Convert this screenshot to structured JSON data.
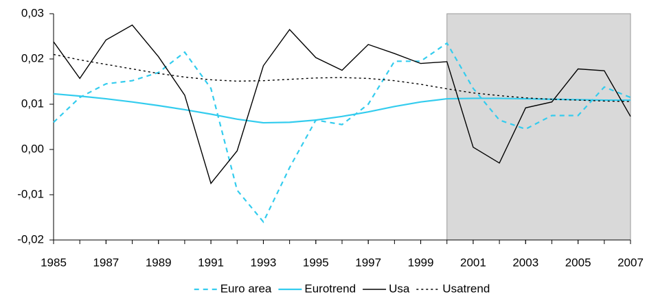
{
  "chart_data": {
    "type": "line",
    "x": [
      1985,
      1986,
      1987,
      1988,
      1989,
      1990,
      1991,
      1992,
      1993,
      1994,
      1995,
      1996,
      1997,
      1998,
      1999,
      2000,
      2001,
      2002,
      2003,
      2004,
      2005,
      2006,
      2007
    ],
    "xlim": [
      1985,
      2007
    ],
    "xticks": [
      1985,
      1987,
      1989,
      1991,
      1993,
      1995,
      1997,
      1999,
      2001,
      2003,
      2005,
      2007
    ],
    "ylim": [
      -0.02,
      0.03
    ],
    "yticks": [
      {
        "value": -0.02,
        "label": "-0,02"
      },
      {
        "value": -0.01,
        "label": "-0,01"
      },
      {
        "value": 0,
        "label": "0,00"
      },
      {
        "value": 0.01,
        "label": "0,01"
      },
      {
        "value": 0.02,
        "label": "0,02"
      },
      {
        "value": 0.03,
        "label": "0,03"
      }
    ],
    "shaded_region": {
      "from": 2000,
      "to": 2007,
      "color": "#d9d9d9"
    },
    "legend": "bottom",
    "series": [
      {
        "name": "Euro area",
        "color": "#33ccee",
        "dash": "dashed",
        "values": [
          0.006,
          0.0115,
          0.0145,
          0.0152,
          0.017,
          0.0215,
          0.0135,
          -0.009,
          -0.016,
          -0.004,
          0.0065,
          0.0055,
          0.01,
          0.0195,
          0.0195,
          0.0235,
          0.0135,
          0.0065,
          0.0045,
          0.0075,
          0.0075,
          0.0138,
          0.0115
        ]
      },
      {
        "name": "Eurotrend",
        "color": "#33ccee",
        "dash": "solid",
        "values": [
          0.0123,
          0.0118,
          0.0112,
          0.0105,
          0.0097,
          0.0088,
          0.0078,
          0.0067,
          0.0059,
          0.006,
          0.0065,
          0.0073,
          0.0083,
          0.0095,
          0.0105,
          0.0112,
          0.0113,
          0.0113,
          0.0112,
          0.0111,
          0.011,
          0.0109,
          0.0109
        ]
      },
      {
        "name": "Usa",
        "color": "#000000",
        "dash": "solid",
        "values": [
          0.0238,
          0.0157,
          0.0242,
          0.0275,
          0.0205,
          0.012,
          -0.0075,
          -0.0003,
          0.0185,
          0.0265,
          0.0203,
          0.0175,
          0.0232,
          0.0212,
          0.019,
          0.0194,
          0.0005,
          -0.003,
          0.0092,
          0.0105,
          0.0178,
          0.0174,
          0.0073
        ]
      },
      {
        "name": "Usatrend",
        "color": "#000000",
        "dash": "dotted",
        "values": [
          0.021,
          0.0198,
          0.0188,
          0.0178,
          0.0168,
          0.016,
          0.0154,
          0.0151,
          0.0152,
          0.0155,
          0.0158,
          0.0159,
          0.0157,
          0.0152,
          0.0144,
          0.0134,
          0.0125,
          0.0119,
          0.0114,
          0.0111,
          0.0109,
          0.0107,
          0.0106
        ]
      }
    ]
  }
}
